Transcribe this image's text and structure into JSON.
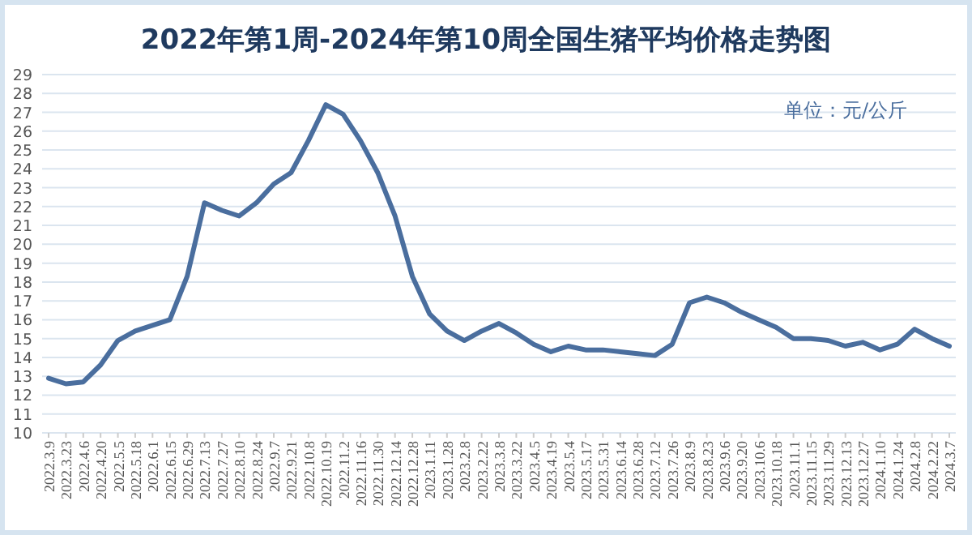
{
  "chart_data": {
    "type": "line",
    "title": "2022年第1周-2024年第10周全国生猪平均价格走势图",
    "annotations": [
      "单位：元/公斤"
    ],
    "categories": [
      "2022.3.9",
      "2022.3.23",
      "2022.4.6",
      "2022.4.20",
      "2022.5.5",
      "2022.5.18",
      "2022.6.1",
      "2022.6.15",
      "2022.6.29",
      "2022.7.13",
      "2022.7.27",
      "2022.8.10",
      "2022.8.24",
      "2022.9.7",
      "2022.9.21",
      "2022.10.8",
      "2022.10.19",
      "2022.11.2",
      "2022.11.16",
      "2022.11.30",
      "2022.12.14",
      "2022.12.28",
      "2023.1.11",
      "2023.1.28",
      "2023.2.8",
      "2023.2.22",
      "2023.3.8",
      "2023.3.22",
      "2023.4.5",
      "2023.4.19",
      "2023.5.4",
      "2023.5.17",
      "2023.5.31",
      "2023.6.14",
      "2023.6.28",
      "2023.7.12",
      "2023.7.26",
      "2023.8.9",
      "2023.8.23",
      "2023.9.6",
      "2023.9.20",
      "2023.10.6",
      "2023.10.18",
      "2023.11.1",
      "2023.11.15",
      "2023.11.29",
      "2023.12.13",
      "2023.12.27",
      "2024.1.10",
      "2024.1.24",
      "2024.2.8",
      "2024.2.22",
      "2024.3.7"
    ],
    "series": [
      {
        "color": "#4a6e9e",
        "values": [
          12.9,
          12.6,
          12.7,
          13.6,
          14.9,
          15.4,
          15.7,
          16.0,
          18.3,
          22.2,
          21.8,
          21.5,
          22.2,
          23.2,
          23.8,
          25.5,
          27.4,
          26.9,
          25.5,
          23.8,
          21.5,
          18.3,
          16.3,
          15.4,
          14.9,
          15.4,
          15.8,
          15.3,
          14.7,
          14.3,
          14.6,
          14.4,
          14.4,
          14.3,
          14.2,
          14.1,
          14.7,
          16.9,
          17.2,
          16.9,
          16.4,
          16.0,
          15.6,
          15.0,
          15.0,
          14.9,
          14.6,
          14.8,
          14.4,
          14.7,
          15.5,
          15.0,
          14.6
        ]
      }
    ],
    "ylim": [
      10,
      29
    ],
    "yticks": [
      10,
      11,
      12,
      13,
      14,
      15,
      16,
      17,
      18,
      19,
      20,
      21,
      22,
      23,
      24,
      25,
      26,
      27,
      28,
      29
    ],
    "grid": "y",
    "marker": "none",
    "line_style": "solid"
  }
}
